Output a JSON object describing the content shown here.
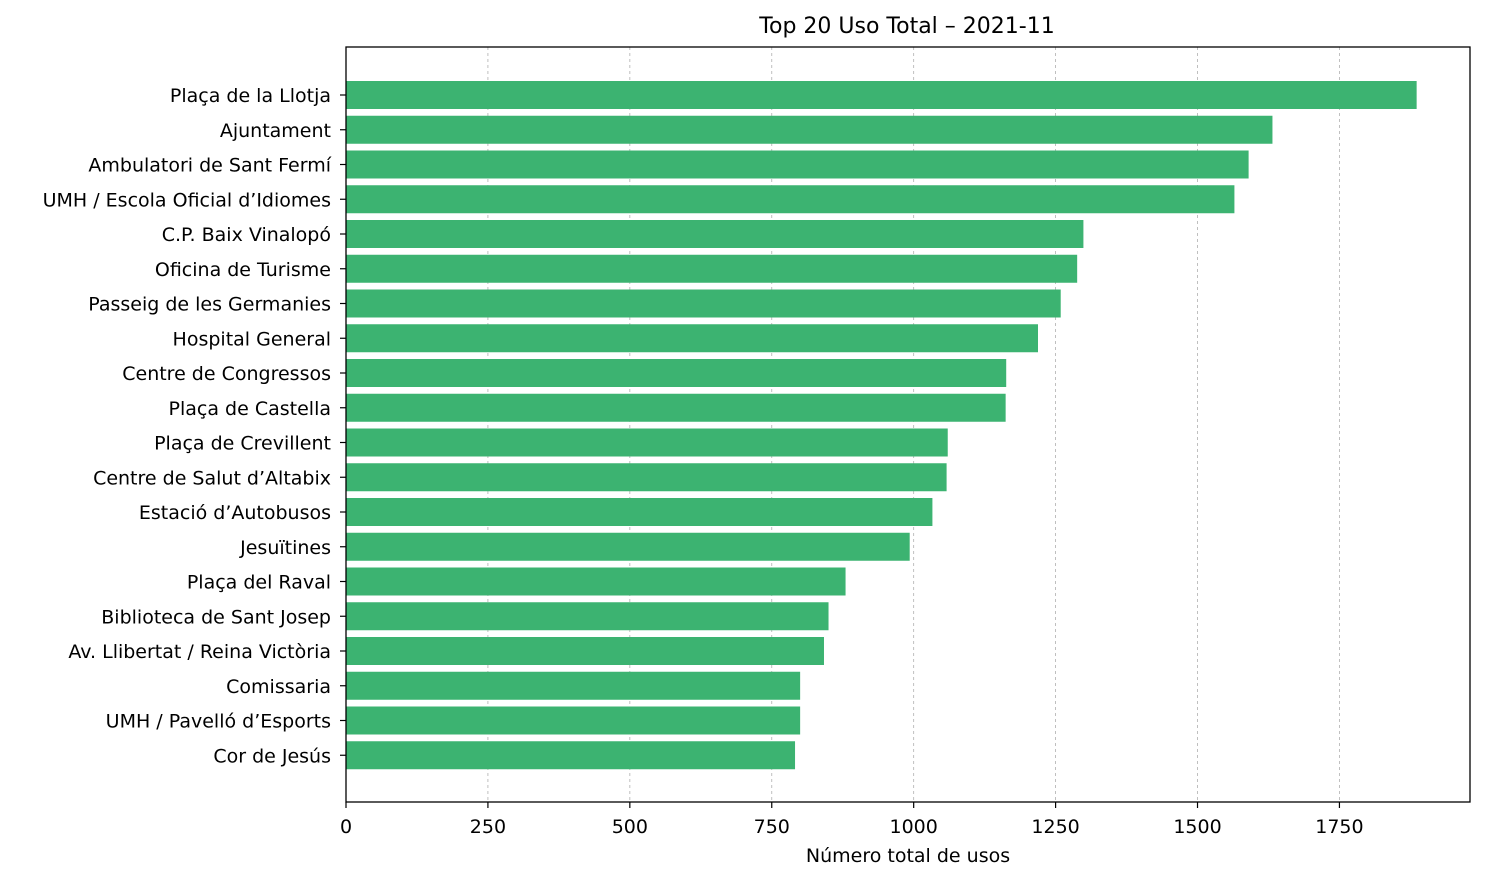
{
  "chart_data": {
    "type": "bar",
    "orientation": "horizontal",
    "title": "Top 20 Uso Total – 2021-11",
    "xlabel": "Número total de usos",
    "ylabel": "",
    "xlim": [
      0,
      1980
    ],
    "xticks": [
      0,
      250,
      500,
      750,
      1000,
      1250,
      1500,
      1750
    ],
    "grid": "x-dashed",
    "bar_color": "#3cb371",
    "categories": [
      "Plaça de la Llotja",
      "Ajuntament",
      "Ambulatori de Sant Fermí",
      "UMH / Escola Oficial d’Idiomes",
      "C.P. Baix Vinalopó",
      "Oficina de Turisme",
      "Passeig de les Germanies",
      "Hospital General",
      "Centre de Congressos",
      "Plaça de Castella",
      "Plaça de Crevillent",
      "Centre de Salut d’Altabix",
      "Estació d’Autobusos",
      "Jesuïtines",
      "Plaça del Raval",
      "Biblioteca de Sant Josep",
      "Av. Llibertat / Reina Victòria",
      "Comissaria",
      "UMH / Pavelló d’Esports",
      "Cor de Jesús"
    ],
    "values": [
      1886,
      1632,
      1590,
      1565,
      1299,
      1288,
      1259,
      1219,
      1163,
      1162,
      1060,
      1058,
      1033,
      993,
      880,
      850,
      842,
      800,
      800,
      791
    ]
  }
}
